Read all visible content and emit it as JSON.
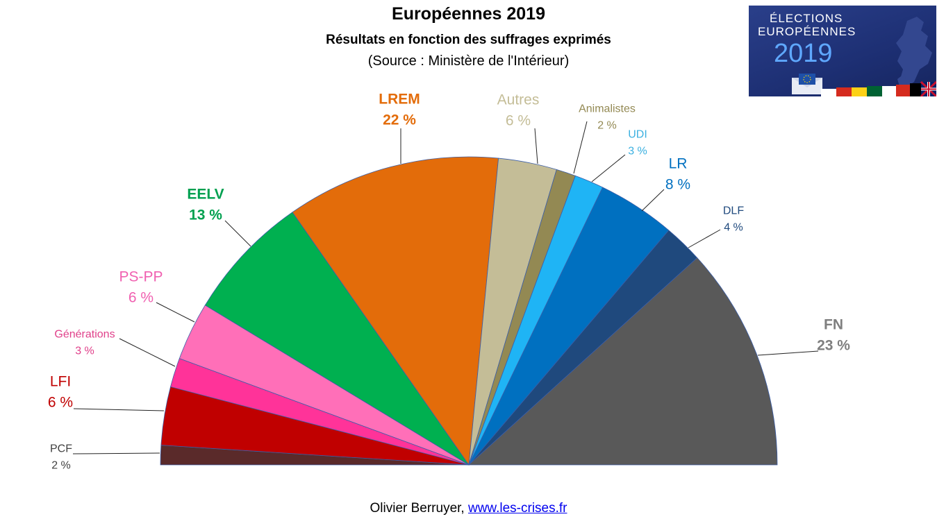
{
  "header": {
    "title": "Européennes  2019",
    "subtitle": "Résultats en fonction des suffrages exprimés",
    "source": "(Source : Ministère de l'Intérieur)"
  },
  "badge": {
    "line1": "ÉLECTIONS",
    "line2": "EUROPÉENNES",
    "year": "2019"
  },
  "footer": {
    "author": "Olivier Berruyer, ",
    "link": "www.les-crises.fr"
  },
  "chart_data": {
    "type": "pie",
    "variant": "semicircle",
    "title": "Européennes  2019",
    "subtitle": "Résultats en fonction des suffrages exprimés",
    "unit": "%",
    "slices": [
      {
        "name": "PCF",
        "value": 2,
        "label": "2 %",
        "color": "#5a2a2a",
        "labelColor": "#404040",
        "bold": false
      },
      {
        "name": "LFI",
        "value": 6,
        "label": "6 %",
        "color": "#c00000",
        "labelColor": "#c00000",
        "bold": false
      },
      {
        "name": "Générations",
        "value": 3,
        "label": "3 %",
        "color": "#ff3399",
        "labelColor": "#e0408a",
        "bold": false
      },
      {
        "name": "PS-PP",
        "value": 6,
        "label": "6 %",
        "color": "#ff6fb8",
        "labelColor": "#f060b0",
        "bold": false
      },
      {
        "name": "EELV",
        "value": 13,
        "label": "13 %",
        "color": "#00b050",
        "labelColor": "#00a050",
        "bold": true
      },
      {
        "name": "LREM",
        "value": 22,
        "label": "22 %",
        "color": "#e36c0a",
        "labelColor": "#e36c0a",
        "bold": true
      },
      {
        "name": "Autres",
        "value": 6,
        "label": "6 %",
        "color": "#c4bd97",
        "labelColor": "#c4bd97",
        "bold": false
      },
      {
        "name": "Animalistes",
        "value": 2,
        "label": "2 %",
        "color": "#938953",
        "labelColor": "#938953",
        "bold": false
      },
      {
        "name": "UDI",
        "value": 3,
        "label": "3 %",
        "color": "#1fb4f5",
        "labelColor": "#3bb0e0",
        "bold": false
      },
      {
        "name": "LR",
        "value": 8,
        "label": "8 %",
        "color": "#0070c0",
        "labelColor": "#0070c0",
        "bold": false
      },
      {
        "name": "DLF",
        "value": 4,
        "label": "4 %",
        "color": "#1f497d",
        "labelColor": "#1f497d",
        "bold": false
      },
      {
        "name": "FN",
        "value": 23,
        "label": "23 %",
        "color": "#595959",
        "labelColor": "#7f7f7f",
        "bold": true
      }
    ]
  }
}
